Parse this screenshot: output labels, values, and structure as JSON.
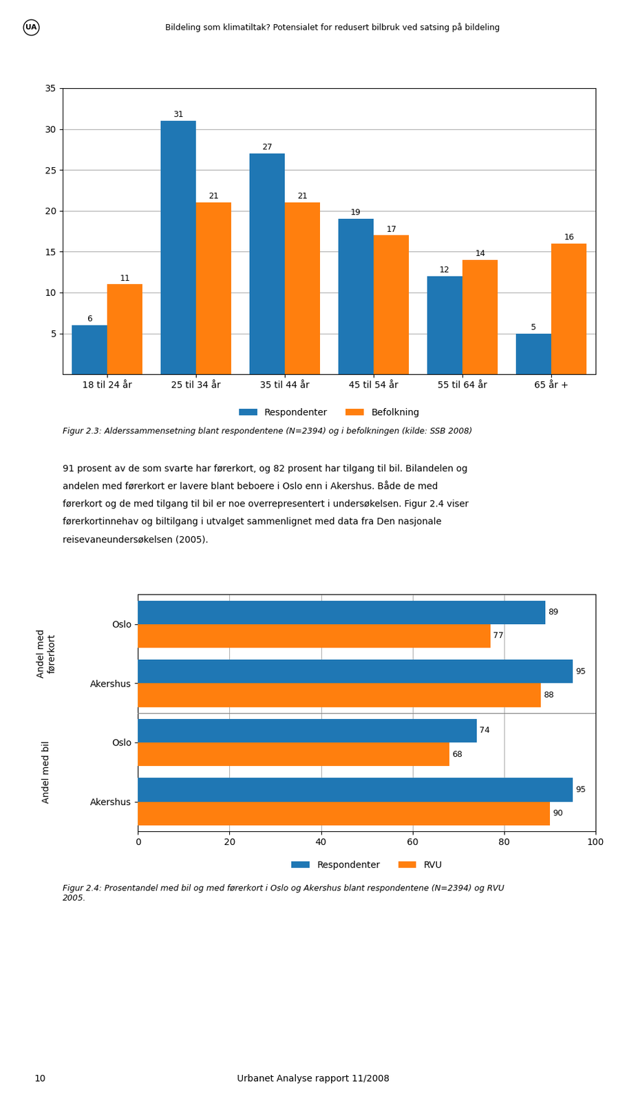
{
  "chart_data": [
    {
      "type": "bar",
      "title": "Figur 2.3: Alderssammensetning blant respondentene (N=2394) og i befolkningen (kilde: SSB 2008)",
      "annotations": [
        "UA",
        "Bildeling som klimatiltak? Potensialet for redusert bilbruk ved satsing på bildeling",
        "91 prosent av de som svarte har førerkort, og 82 prosent har tilgang til bil. Bilandelen og",
        "andelen med førerkort er lavere blant beboere i Oslo enn i Akershus. Både de med",
        "førerkort og de med tilgang til bil er noe overrepresentert i undersøkelsen. Figur 2.4 viser",
        "førerkortinnehav og biltilgang i utvalget sammenlignet med data fra Den nasjonale",
        "reisevaneundersøkelsen (2005)."
      ],
      "categories": [
        "18 til 24 år",
        "25 til 34 år",
        "35 til 44 år",
        "45 til 54 år",
        "55 til 64 år",
        "65 år +"
      ],
      "series": [
        {
          "name": "Respondenter",
          "values": [
            6,
            31,
            27,
            19,
            12,
            5
          ]
        },
        {
          "name": "Befolkning",
          "values": [
            11,
            21,
            21,
            17,
            14,
            16
          ]
        }
      ],
      "ylim": [
        0,
        35
      ],
      "yticks": [
        5,
        10,
        15,
        20,
        25,
        30,
        35
      ],
      "grid": true,
      "legend": "upper center",
      "data_labels": true
    },
    {
      "type": "bar",
      "orientation": "horizontal",
      "title": "Figur 2.4: Prosentandel med bil og med førerkort i Oslo og Akershus blant respondentene (N=2394) og RVU\n2005.",
      "annotations": [
        "10",
        "Urbanet Analyse rapport 11/2008"
      ],
      "group_labels": [
        "Andel med\nførerkort",
        "Andel med bil"
      ],
      "categories": [
        "Oslo",
        "Akershus",
        "Oslo",
        "Akershus"
      ],
      "series": [
        {
          "name": "Respondenter",
          "values": [
            89,
            95,
            74,
            95
          ]
        },
        {
          "name": "RVU",
          "values": [
            77,
            88,
            68,
            90
          ]
        }
      ],
      "xlim": [
        0,
        100
      ],
      "xticks": [
        0,
        20,
        40,
        60,
        80,
        100
      ],
      "grid": true,
      "legend": "upper center",
      "data_labels": true
    }
  ]
}
